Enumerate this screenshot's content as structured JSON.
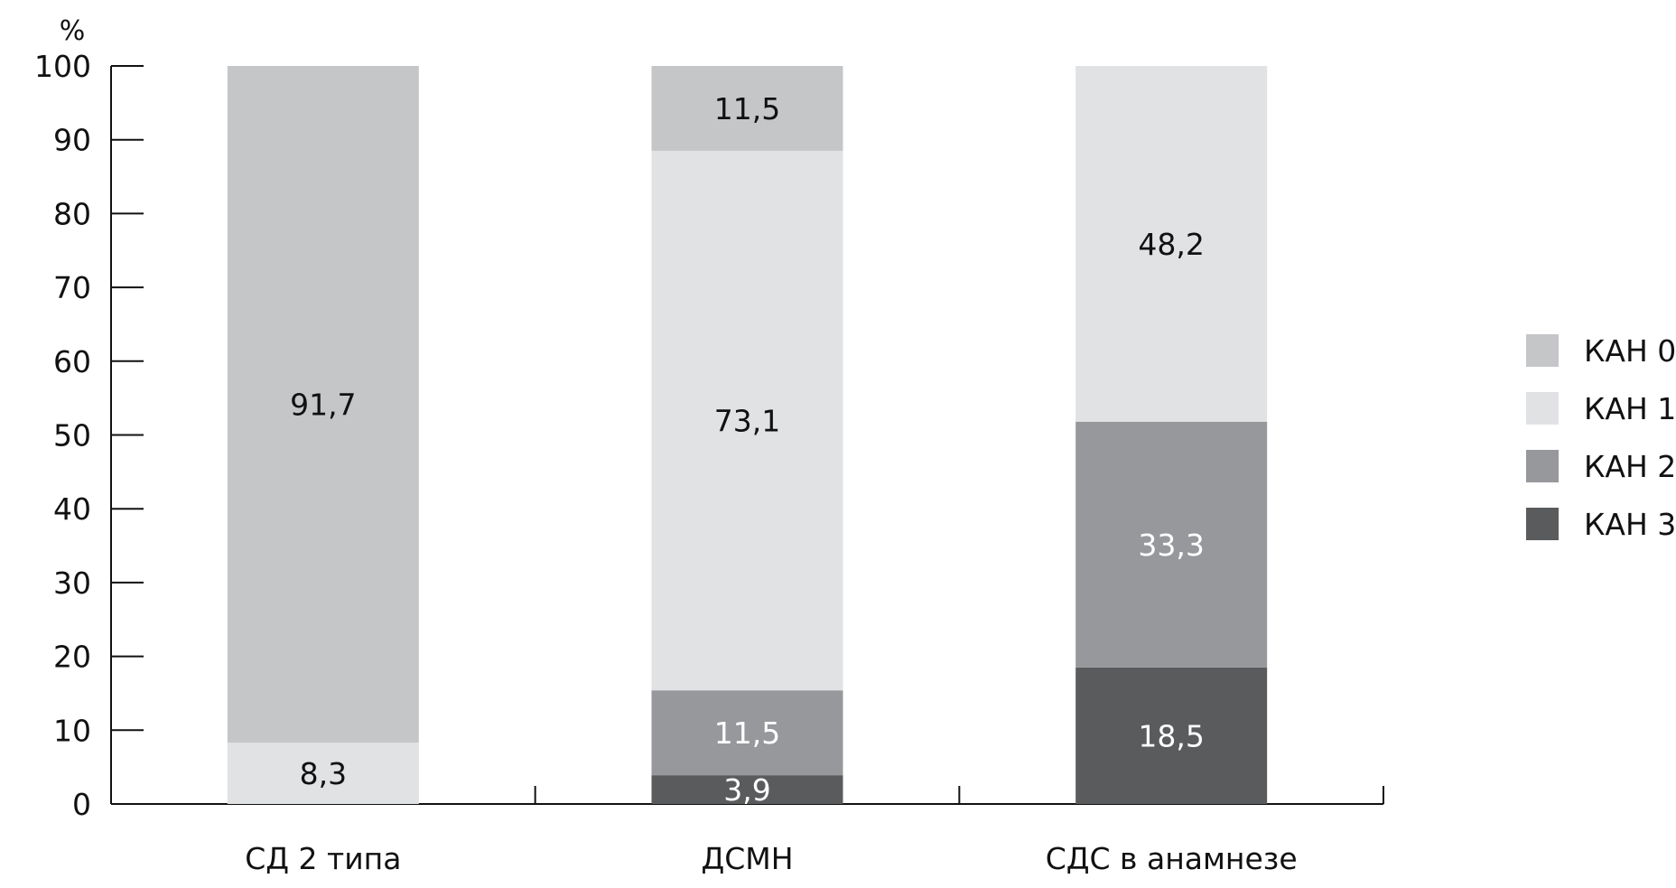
{
  "chart_data": {
    "type": "bar",
    "stacked": true,
    "ylabel": "%",
    "ylim": [
      0,
      100
    ],
    "yticks": [
      0,
      10,
      20,
      30,
      40,
      50,
      60,
      70,
      80,
      90,
      100
    ],
    "grid": false,
    "legend_position": "right",
    "categories": [
      "СД 2 типа",
      "ДСМН",
      "СДС в анамнезе"
    ],
    "series": [
      {
        "name": "КАН 3",
        "color": "#5a5b5d",
        "label_color": "#ffffff",
        "values": [
          0,
          3.9,
          18.5
        ],
        "labels": [
          "",
          "3,9",
          "18,5"
        ]
      },
      {
        "name": "КАН 2",
        "color": "#97989b",
        "label_color": "#ffffff",
        "values": [
          0,
          11.5,
          33.3
        ],
        "labels": [
          "",
          "11,5",
          "33,3"
        ]
      },
      {
        "name": "КАН 1",
        "color": "#e1e2e4",
        "label_color": "#111111",
        "values": [
          8.3,
          73.1,
          48.2
        ],
        "labels": [
          "8,3",
          "73,1",
          "48,2"
        ]
      },
      {
        "name": "КАН 0",
        "color": "#c5c6c8",
        "label_color": "#111111",
        "values": [
          91.7,
          11.5,
          0
        ],
        "labels": [
          "91,7",
          "11,5",
          ""
        ]
      }
    ],
    "legend_order": [
      "КАН 0",
      "КАН 1",
      "КАН 2",
      "КАН 3"
    ]
  }
}
